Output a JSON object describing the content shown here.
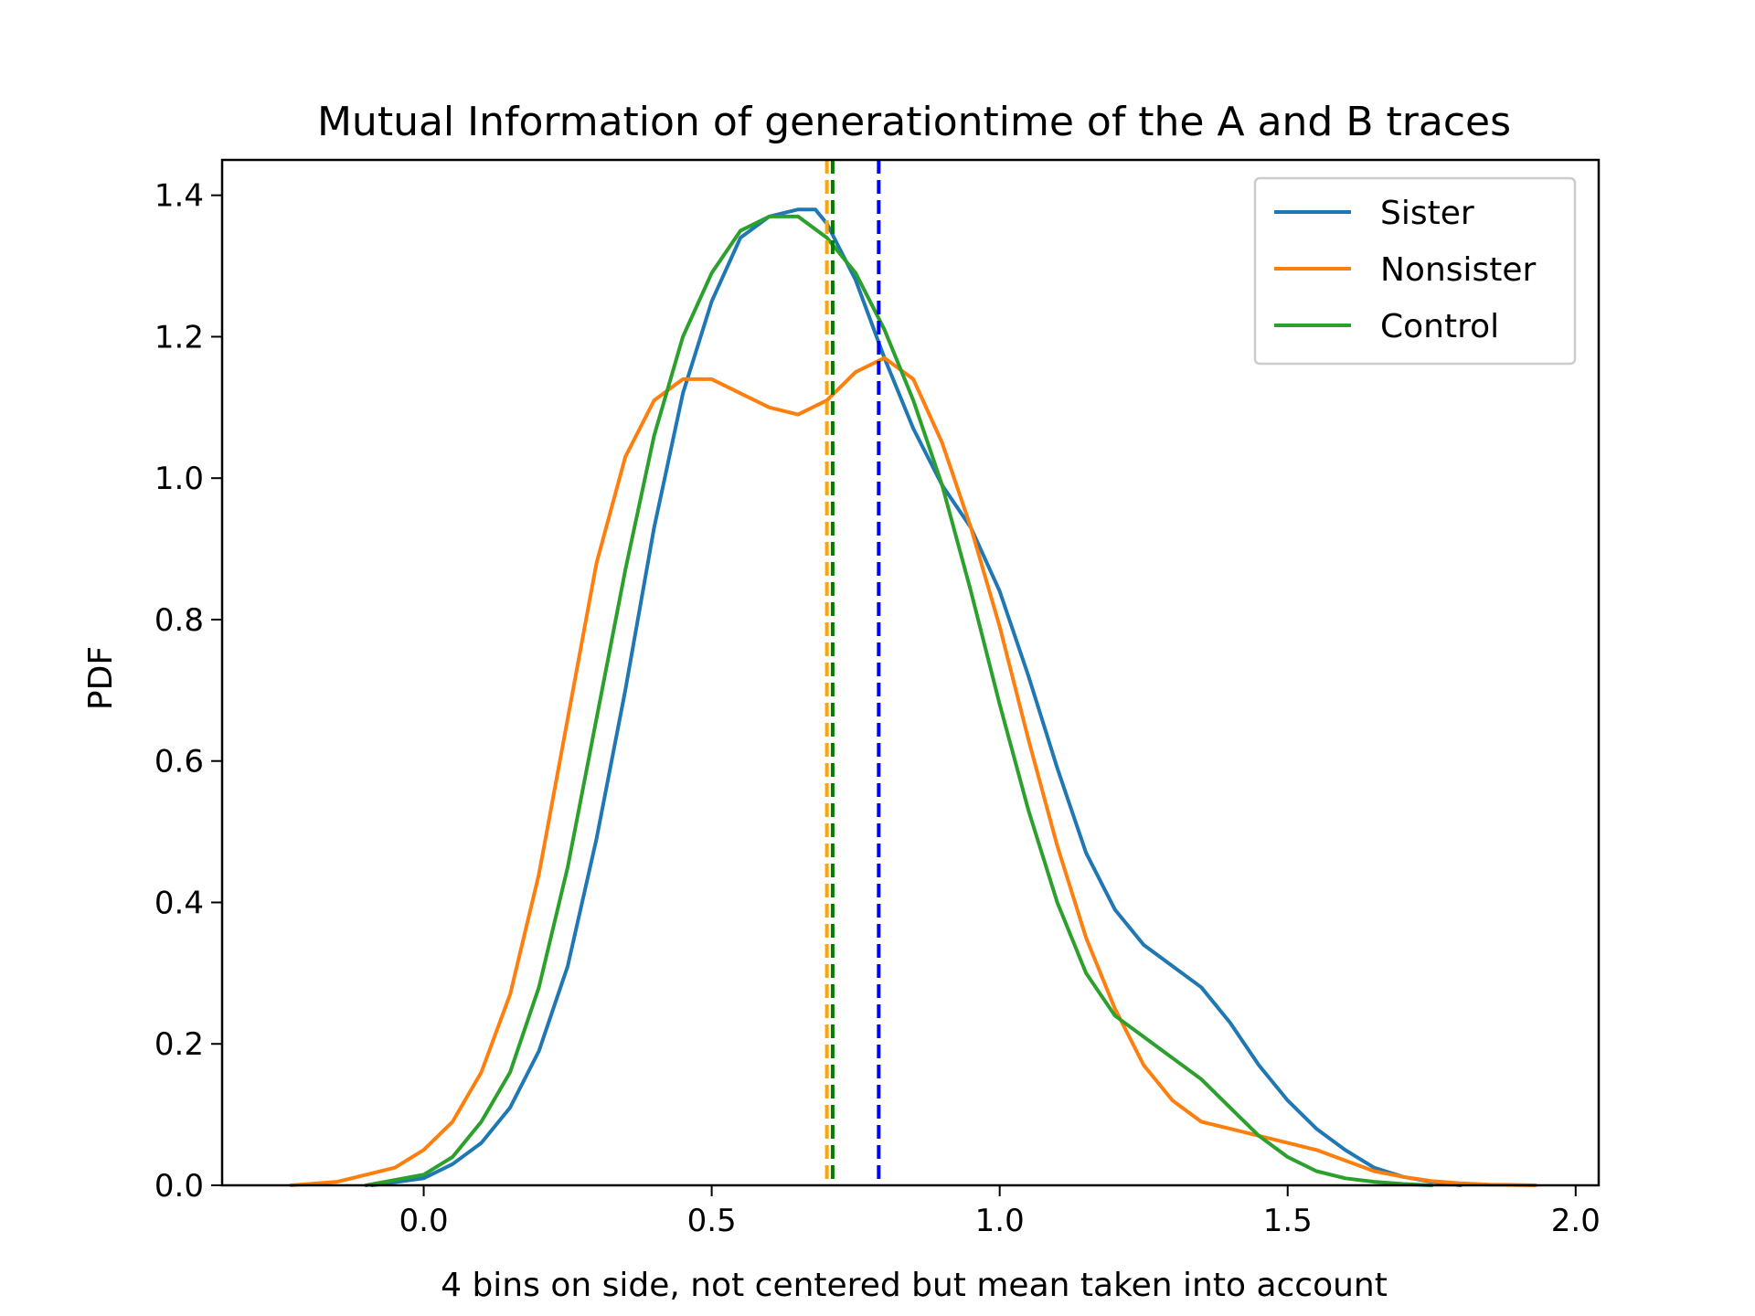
{
  "chart_data": {
    "type": "line",
    "title": "Mutual Information of generationtime of the A and B traces",
    "xlabel": "4 bins on side, not centered but mean taken into account",
    "ylabel": "PDF",
    "xlim": [
      -0.35,
      2.04
    ],
    "ylim": [
      0,
      1.45
    ],
    "xticks": [
      0.0,
      0.5,
      1.0,
      1.5,
      2.0
    ],
    "xtick_labels": [
      "0.0",
      "0.5",
      "1.0",
      "1.5",
      "2.0"
    ],
    "yticks": [
      0.0,
      0.2,
      0.4,
      0.6,
      0.8,
      1.0,
      1.2,
      1.4
    ],
    "ytick_labels": [
      "0.0",
      "0.2",
      "0.4",
      "0.6",
      "0.8",
      "1.0",
      "1.2",
      "1.4"
    ],
    "grid": false,
    "legend_position": "top-right",
    "series": [
      {
        "name": "Sister",
        "color": "#1f77b4",
        "x": [
          -0.09,
          0.0,
          0.05,
          0.1,
          0.15,
          0.2,
          0.25,
          0.3,
          0.35,
          0.4,
          0.45,
          0.5,
          0.55,
          0.6,
          0.65,
          0.68,
          0.7,
          0.75,
          0.8,
          0.85,
          0.9,
          0.95,
          1.0,
          1.05,
          1.1,
          1.15,
          1.2,
          1.25,
          1.3,
          1.35,
          1.4,
          1.45,
          1.5,
          1.55,
          1.6,
          1.65,
          1.7,
          1.75,
          1.8
        ],
        "y": [
          0.0,
          0.01,
          0.03,
          0.06,
          0.11,
          0.19,
          0.31,
          0.49,
          0.7,
          0.93,
          1.12,
          1.25,
          1.34,
          1.37,
          1.38,
          1.38,
          1.36,
          1.28,
          1.17,
          1.07,
          0.99,
          0.93,
          0.84,
          0.72,
          0.59,
          0.47,
          0.39,
          0.34,
          0.31,
          0.28,
          0.23,
          0.17,
          0.12,
          0.08,
          0.05,
          0.025,
          0.012,
          0.005,
          0.0
        ]
      },
      {
        "name": "Nonsister",
        "color": "#ff7f0e",
        "x": [
          -0.23,
          -0.15,
          -0.05,
          0.0,
          0.05,
          0.1,
          0.15,
          0.2,
          0.25,
          0.3,
          0.35,
          0.4,
          0.45,
          0.5,
          0.55,
          0.6,
          0.65,
          0.7,
          0.75,
          0.8,
          0.85,
          0.9,
          0.95,
          1.0,
          1.05,
          1.1,
          1.15,
          1.2,
          1.25,
          1.3,
          1.35,
          1.4,
          1.45,
          1.5,
          1.55,
          1.6,
          1.65,
          1.7,
          1.75,
          1.8,
          1.85,
          1.93
        ],
        "y": [
          0.0,
          0.005,
          0.025,
          0.05,
          0.09,
          0.16,
          0.27,
          0.44,
          0.66,
          0.88,
          1.03,
          1.11,
          1.14,
          1.14,
          1.12,
          1.1,
          1.09,
          1.11,
          1.15,
          1.17,
          1.14,
          1.05,
          0.93,
          0.79,
          0.63,
          0.48,
          0.35,
          0.25,
          0.17,
          0.12,
          0.09,
          0.08,
          0.07,
          0.06,
          0.05,
          0.035,
          0.02,
          0.012,
          0.006,
          0.003,
          0.001,
          0.0
        ]
      },
      {
        "name": "Control",
        "color": "#2ca02c",
        "x": [
          -0.1,
          0.0,
          0.05,
          0.1,
          0.15,
          0.2,
          0.25,
          0.3,
          0.35,
          0.4,
          0.45,
          0.5,
          0.55,
          0.6,
          0.65,
          0.7,
          0.75,
          0.8,
          0.85,
          0.9,
          0.95,
          1.0,
          1.05,
          1.1,
          1.15,
          1.2,
          1.25,
          1.3,
          1.35,
          1.4,
          1.45,
          1.5,
          1.55,
          1.6,
          1.65,
          1.7,
          1.75
        ],
        "y": [
          0.0,
          0.015,
          0.04,
          0.09,
          0.16,
          0.28,
          0.45,
          0.66,
          0.87,
          1.06,
          1.2,
          1.29,
          1.35,
          1.37,
          1.37,
          1.34,
          1.29,
          1.21,
          1.11,
          0.99,
          0.84,
          0.68,
          0.53,
          0.4,
          0.3,
          0.24,
          0.21,
          0.18,
          0.15,
          0.11,
          0.07,
          0.04,
          0.02,
          0.01,
          0.005,
          0.002,
          0.0
        ]
      }
    ],
    "vlines": [
      {
        "x": 0.7,
        "color": "orange",
        "style": "dashed"
      },
      {
        "x": 0.71,
        "color": "green",
        "style": "dashed"
      },
      {
        "x": 0.79,
        "color": "blue",
        "style": "dashed"
      }
    ]
  }
}
